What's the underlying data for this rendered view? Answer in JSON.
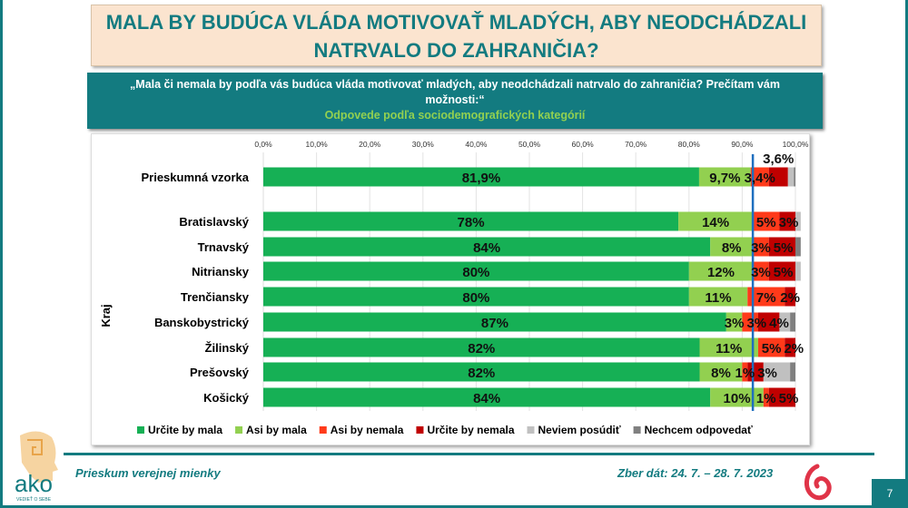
{
  "title": {
    "line1": "MALA BY BUDÚCA VLÁDA MOTIVOVAŤ MLADÝCH, ABY NEODCHÁDZALI",
    "line2": "NATRVALO DO ZAHRANIČIA?"
  },
  "question": {
    "text": "„Mala či nemala by podľa vás budúca vláda motivovať mladých, aby neodchádzali natrvalo do zahraničia? Prečítam vám možnosti:“",
    "subtitle": "Odpovede podľa sociodemografických kategórií"
  },
  "chart_data": {
    "type": "bar",
    "orientation": "horizontal",
    "stacked": true,
    "xlim": [
      0,
      100
    ],
    "xticks": [
      "0,0%",
      "10,0%",
      "20,0%",
      "30,0%",
      "40,0%",
      "50,0%",
      "60,0%",
      "70,0%",
      "80,0%",
      "90,0%",
      "100,0%"
    ],
    "group_label": "Kraj",
    "categories": [
      "Prieskumná vzorka",
      "Bratislavský",
      "Trnavský",
      "Nitriansky",
      "Trenčiansky",
      "Banskobystrický",
      "Žilinský",
      "Prešovský",
      "Košický"
    ],
    "reference_line": 92,
    "legend_position": "bottom",
    "series": [
      {
        "name": "Určite by mala",
        "color": "#16b055",
        "values": [
          81.9,
          78,
          84,
          80,
          80,
          87,
          82,
          82,
          84
        ],
        "labels": [
          "81,9%",
          "78%",
          "84%",
          "80%",
          "80%",
          "87%",
          "82%",
          "82%",
          "84%"
        ]
      },
      {
        "name": "Asi by mala",
        "color": "#92d050",
        "values": [
          9.7,
          14,
          8,
          12,
          11,
          3,
          11,
          8,
          10
        ],
        "labels": [
          "9,7%",
          "14%",
          "8%",
          "12%",
          "11%",
          "3%",
          "11%",
          "8%",
          "10%"
        ]
      },
      {
        "name": "Asi by nemala",
        "color": "#ff3a1a",
        "values": [
          3.4,
          5,
          3,
          3,
          7,
          3,
          5,
          1,
          1
        ],
        "labels": [
          "3,4%",
          "5%",
          "3%",
          "3%",
          "7%",
          "3%",
          "5%",
          "1%",
          "1%"
        ]
      },
      {
        "name": "Určite by nemala",
        "color": "#c00000",
        "values": [
          3.6,
          3,
          5,
          5,
          2,
          4,
          2,
          3,
          5
        ],
        "labels": [
          "3,6%",
          "3%",
          "5%",
          "5%",
          "2%",
          "4%",
          "2%",
          "3%",
          "5%"
        ]
      },
      {
        "name": "Neviem posúdiť",
        "color": "#c0c0c0",
        "values": [
          1.1,
          1,
          0,
          1,
          0,
          2,
          0,
          5,
          0
        ]
      },
      {
        "name": "Nechcem odpovedať",
        "color": "#808080",
        "values": [
          0.3,
          0,
          1,
          0,
          0,
          1,
          0,
          1,
          0
        ]
      }
    ]
  },
  "footer": {
    "left": "Prieskum verejnej mienky",
    "right": "Zber dát: 24. 7. – 28. 7. 2023",
    "page": "7",
    "logo_text": "ako",
    "logo_tagline": "VEDIEŤ O SEBE"
  }
}
